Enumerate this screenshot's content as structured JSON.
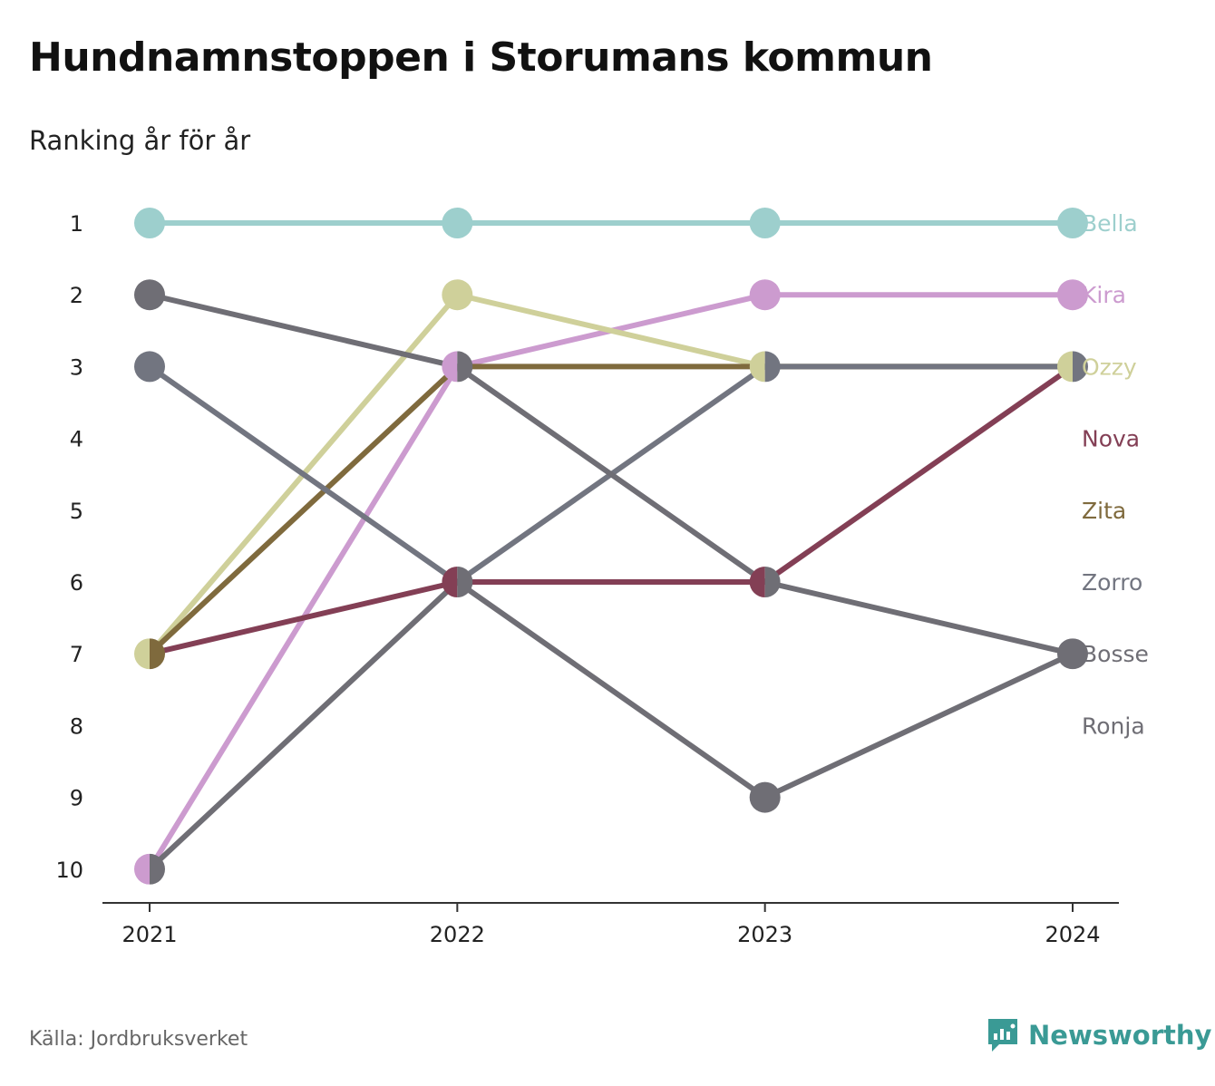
{
  "title": "Hundnamnstoppen i Storumans kommun",
  "subtitle": "Ranking år för år",
  "source": "Källa: Jordbruksverket",
  "brand": "Newsworthy",
  "colors": {
    "axis": "#333333",
    "tick_text": "#222222",
    "brand": "#3a9a95"
  },
  "chart_data": {
    "type": "line",
    "x": [
      "2021",
      "2022",
      "2023",
      "2024"
    ],
    "ylim": [
      1,
      10
    ],
    "y_reversed": true,
    "y_ticks": [
      "1",
      "2",
      "3",
      "4",
      "5",
      "6",
      "7",
      "8",
      "9",
      "10"
    ],
    "grid": false,
    "legend": "right, end labels",
    "series": [
      {
        "name": "Bella",
        "color": "#9dcfcd",
        "values": [
          1,
          1,
          1,
          1
        ]
      },
      {
        "name": "Kira",
        "color": "#cc9bcf",
        "values": [
          10,
          3,
          2,
          2
        ]
      },
      {
        "name": "Ozzy",
        "color": "#cfd09a",
        "values": [
          7,
          2,
          3,
          3
        ]
      },
      {
        "name": "Nova",
        "color": "#833f55",
        "values": [
          7,
          6,
          6,
          3
        ]
      },
      {
        "name": "Zita",
        "color": "#7f6a3d",
        "values": [
          7,
          3,
          3,
          3
        ]
      },
      {
        "name": "Zorro",
        "color": "#727580",
        "values": [
          3,
          6,
          3,
          3
        ]
      },
      {
        "name": "Bosse",
        "color": "#6f6e75",
        "values": [
          2,
          3,
          6,
          7
        ]
      },
      {
        "name": "Ronja",
        "color": "#6f6e75",
        "values": [
          10,
          6,
          9,
          7
        ]
      }
    ]
  }
}
